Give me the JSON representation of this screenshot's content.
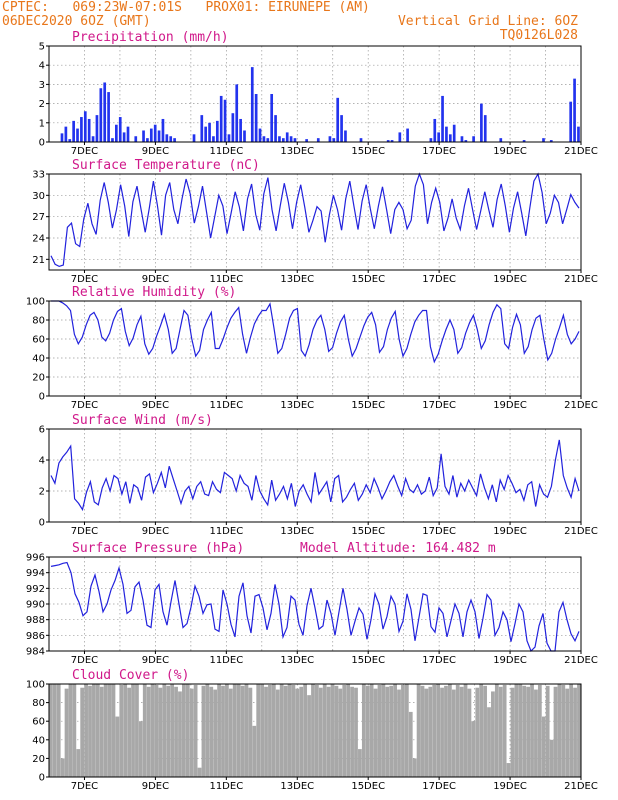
{
  "header": {
    "line1_left": "CPTEC:   069:23W-07:01S   PROX01: EIRUNEPE (AM)",
    "line2_left": "06DEC2020 6OZ (GMT)",
    "line2_right": "Vertical Grid Line: 6OZ",
    "line3_right": "TQ0126L028"
  },
  "colors": {
    "series": "#2222dd",
    "bars": "#2233ee",
    "cloud": "#a8a8a8",
    "header": "#e8761a",
    "title": "#d0188a"
  },
  "x_axis": {
    "ticks": [
      "7DEC",
      "9DEC",
      "11DEC",
      "13DEC",
      "15DEC",
      "17DEC",
      "19DEC",
      "21DEC"
    ],
    "start": "06DEC2020 06Z",
    "end": "21DEC2020 06Z",
    "step_hours": 6
  },
  "chart_data": [
    {
      "type": "bar",
      "title": "Precipitation (mm/h)",
      "ylim": [
        0,
        5
      ],
      "yticks": [
        "0",
        "1",
        "2",
        "3",
        "4",
        "5"
      ],
      "series": [
        {
          "values": [
            0,
            0,
            0,
            0.45,
            0.8,
            0.15,
            1.1,
            0.7,
            1.3,
            1.6,
            1.2,
            0.3,
            1.4,
            2.8,
            3.1,
            2.6,
            0.2,
            0.9,
            1.3,
            0.5,
            0.8,
            0,
            0.3,
            0,
            0.6,
            0.2,
            0.7,
            0.9,
            0.6,
            1.2,
            0.4,
            0.3,
            0.2,
            0,
            0,
            0,
            0,
            0.4,
            0,
            1.4,
            0.8,
            1.0,
            0.3,
            1.1,
            2.4,
            2.2,
            0.4,
            1.5,
            3.0,
            1.2,
            0.6,
            0,
            3.9,
            2.5,
            0.7,
            0.3,
            0.2,
            2.5,
            1.4,
            0.3,
            0.2,
            0.5,
            0.3,
            0.2,
            0,
            0,
            0.15,
            0,
            0,
            0.2,
            0,
            0,
            0.3,
            0.2,
            2.3,
            1.4,
            0.6,
            0,
            0,
            0,
            0.2,
            0,
            0,
            0,
            0,
            0,
            0,
            0.1,
            0.1,
            0,
            0.5,
            0,
            0.7,
            0,
            0,
            0,
            0,
            0,
            0.2,
            1.2,
            0.5,
            2.4,
            0.8,
            0.4,
            0.9,
            0,
            0.3,
            0.1,
            0,
            0.3,
            0,
            2.0,
            1.4,
            0,
            0,
            0,
            0.2,
            0,
            0,
            0,
            0,
            0,
            0.1,
            0,
            0,
            0,
            0,
            0.2,
            0,
            0.1,
            0,
            0,
            0,
            0,
            2.1,
            3.3,
            0.8
          ]
        }
      ]
    },
    {
      "type": "line",
      "title": "Surface Temperature (nC)",
      "ylim": [
        19.5,
        33
      ],
      "yticks": [
        "21",
        "24",
        "27",
        "30",
        "33"
      ],
      "series": [
        {
          "values": [
            21.5,
            20.3,
            20.0,
            20.2,
            25.5,
            26.1,
            23.2,
            22.8,
            26.7,
            28.9,
            26.0,
            24.5,
            29.3,
            31.8,
            29.0,
            25.4,
            28.0,
            31.5,
            28.5,
            24.2,
            29.1,
            31.3,
            28.0,
            24.8,
            28.2,
            32.0,
            28.6,
            24.4,
            30.0,
            31.8,
            28.0,
            26.0,
            29.5,
            32.3,
            30.2,
            26.1,
            28.4,
            31.3,
            27.6,
            24.0,
            27.0,
            30.0,
            28.5,
            24.6,
            27.5,
            30.5,
            28.4,
            25.0,
            29.5,
            31.6,
            27.3,
            25.1,
            30.2,
            32.5,
            28.0,
            25.0,
            28.5,
            31.7,
            29.0,
            25.3,
            29.0,
            31.5,
            28.3,
            24.8,
            26.5,
            28.4,
            27.8,
            23.4,
            27.2,
            30.0,
            28.0,
            25.1,
            29.5,
            32.0,
            28.5,
            25.2,
            29.2,
            31.5,
            28.2,
            25.3,
            28.5,
            31.2,
            28.0,
            24.6,
            28.0,
            29.0,
            28.0,
            25.3,
            26.5,
            31.3,
            33.0,
            31.5,
            26.0,
            29.0,
            31.0,
            29.0,
            25.0,
            26.8,
            29.5,
            26.8,
            25.2,
            28.5,
            31.0,
            28.0,
            25.2,
            27.8,
            30.5,
            27.9,
            25.5,
            29.4,
            31.6,
            28.5,
            24.8,
            28.2,
            30.5,
            27.5,
            24.3,
            28.2,
            32.0,
            33.0,
            30.4,
            26.0,
            27.5,
            30.0,
            29.0,
            26.0,
            28.0,
            30.1,
            29.0,
            28.2
          ]
        }
      ]
    },
    {
      "type": "line",
      "title": "Relative Humidity (%)",
      "ylim": [
        0,
        100
      ],
      "yticks": [
        "0",
        "20",
        "40",
        "60",
        "80",
        "100"
      ],
      "series": [
        {
          "values": [
            100,
            100,
            100,
            98,
            95,
            90,
            65,
            55,
            62,
            75,
            85,
            88,
            80,
            62,
            58,
            66,
            80,
            89,
            92,
            68,
            53,
            61,
            75,
            84,
            55,
            44,
            50,
            63,
            74,
            86,
            70,
            45,
            50,
            70,
            90,
            85,
            60,
            42,
            48,
            70,
            80,
            88,
            50,
            50,
            60,
            72,
            82,
            88,
            93,
            65,
            45,
            62,
            76,
            84,
            90,
            90,
            97,
            72,
            45,
            50,
            65,
            82,
            90,
            92,
            48,
            42,
            54,
            70,
            80,
            85,
            70,
            47,
            51,
            66,
            78,
            85,
            60,
            42,
            50,
            62,
            74,
            83,
            88,
            75,
            46,
            52,
            70,
            82,
            89,
            60,
            42,
            50,
            65,
            78,
            85,
            90,
            90,
            52,
            36,
            44,
            58,
            70,
            80,
            70,
            45,
            51,
            66,
            77,
            85,
            70,
            50,
            58,
            75,
            88,
            96,
            92,
            55,
            50,
            72,
            86,
            75,
            45,
            52,
            70,
            82,
            85,
            60,
            38,
            45,
            60,
            72,
            85,
            65,
            55,
            60,
            68
          ]
        }
      ]
    },
    {
      "type": "line",
      "title": "Surface Wind (m/s)",
      "ylim": [
        0,
        6
      ],
      "yticks": [
        "0",
        "2",
        "4",
        "6"
      ],
      "series": [
        {
          "values": [
            3.0,
            2.5,
            3.8,
            4.2,
            4.5,
            4.9,
            1.5,
            1.2,
            0.8,
            1.9,
            2.6,
            1.3,
            1.1,
            2.2,
            2.8,
            2.0,
            3.0,
            2.8,
            1.8,
            2.6,
            1.2,
            2.4,
            2.2,
            1.4,
            2.9,
            3.1,
            1.9,
            2.5,
            3.2,
            2.2,
            3.6,
            2.8,
            2.0,
            1.2,
            2.0,
            2.3,
            1.5,
            2.3,
            2.6,
            1.8,
            1.7,
            2.6,
            2.1,
            1.9,
            3.2,
            3.0,
            2.8,
            2.0,
            3.0,
            2.5,
            2.3,
            1.4,
            3.0,
            2.0,
            1.5,
            1.1,
            2.7,
            1.4,
            1.8,
            2.3,
            1.5,
            2.5,
            1.0,
            2.0,
            2.4,
            1.8,
            1.3,
            3.2,
            1.8,
            2.2,
            2.6,
            1.3,
            2.8,
            3.0,
            1.3,
            1.6,
            2.1,
            2.5,
            1.4,
            1.8,
            2.4,
            1.9,
            2.8,
            2.2,
            1.5,
            2.0,
            2.6,
            3.0,
            2.3,
            1.7,
            2.8,
            2.1,
            1.9,
            2.4,
            1.8,
            2.0,
            2.9,
            1.7,
            2.2,
            4.4,
            2.3,
            1.8,
            3.0,
            1.6,
            2.5,
            2.0,
            2.7,
            2.2,
            1.7,
            3.1,
            2.2,
            1.5,
            2.4,
            1.3,
            2.7,
            2.1,
            3.0,
            2.5,
            1.9,
            2.1,
            1.4,
            2.4,
            2.6,
            1.0,
            2.4,
            1.8,
            1.6,
            2.3,
            4.0,
            5.3,
            3.0,
            2.2,
            1.6,
            2.8,
            2.0
          ]
        }
      ]
    },
    {
      "type": "line",
      "title": "Surface Pressure (hPa)",
      "annotation": "Model Altitude: 164.482 m",
      "ylim": [
        984,
        996
      ],
      "yticks": [
        "984",
        "986",
        "988",
        "990",
        "992",
        "994",
        "996"
      ],
      "series": [
        {
          "values": [
            994.8,
            994.9,
            995.0,
            995.2,
            995.3,
            994.0,
            991.3,
            990.2,
            988.5,
            989.0,
            992.3,
            993.7,
            991.6,
            989.0,
            990.0,
            991.8,
            993.0,
            994.6,
            992.5,
            988.8,
            989.2,
            992.2,
            992.8,
            990.5,
            987.3,
            987.0,
            991.8,
            992.5,
            989.0,
            987.3,
            990.3,
            993.0,
            990.0,
            987.0,
            987.5,
            989.6,
            992.3,
            991.0,
            988.8,
            989.9,
            990.0,
            986.8,
            986.5,
            991.8,
            990.0,
            987.4,
            985.8,
            991.0,
            992.7,
            988.5,
            986.3,
            991.0,
            991.2,
            989.5,
            986.7,
            988.8,
            992.5,
            990.0,
            985.8,
            987.0,
            991.0,
            990.5,
            987.4,
            986.0,
            989.8,
            992.0,
            989.5,
            986.8,
            987.2,
            990.5,
            988.8,
            986.0,
            989.0,
            992.0,
            989.3,
            986.0,
            987.8,
            989.5,
            988.7,
            985.5,
            988.0,
            991.3,
            990.0,
            986.8,
            988.4,
            991.0,
            990.0,
            986.5,
            987.8,
            991.3,
            989.3,
            985.3,
            988.3,
            991.3,
            991.1,
            987.1,
            986.4,
            989.5,
            988.8,
            985.8,
            987.9,
            990.0,
            988.8,
            985.8,
            989.0,
            990.5,
            989.0,
            985.6,
            988.2,
            991.2,
            990.5,
            986.0,
            987.0,
            989.0,
            988.0,
            985.2,
            987.5,
            990.0,
            989.0,
            985.3,
            983.9,
            984.5,
            987.2,
            988.8,
            985.0,
            983.8,
            984.0,
            989.0,
            990.2,
            988.0,
            986.2,
            985.3,
            986.5
          ]
        }
      ]
    },
    {
      "type": "bar",
      "title": "Cloud Cover (%)",
      "ylim": [
        0,
        100
      ],
      "yticks": [
        "0",
        "20",
        "40",
        "60",
        "80",
        "100"
      ],
      "series": [
        {
          "values": [
            100,
            100,
            100,
            20,
            95,
            100,
            100,
            30,
            96,
            100,
            98,
            100,
            100,
            97,
            100,
            100,
            100,
            65,
            99,
            100,
            96,
            100,
            100,
            60,
            100,
            97,
            100,
            99,
            96,
            100,
            98,
            100,
            97,
            92,
            100,
            100,
            95,
            99,
            10,
            98,
            100,
            97,
            94,
            100,
            98,
            100,
            95,
            100,
            100,
            98,
            100,
            96,
            55,
            100,
            100,
            97,
            99,
            100,
            94,
            100,
            98,
            100,
            99,
            95,
            97,
            100,
            88,
            100,
            99,
            96,
            100,
            97,
            100,
            98,
            95,
            99,
            100,
            97,
            96,
            30,
            100,
            98,
            100,
            95,
            99,
            100,
            97,
            98,
            100,
            94,
            99,
            100,
            70,
            20,
            100,
            98,
            95,
            97,
            99,
            100,
            96,
            98,
            100,
            94,
            99,
            97,
            100,
            95,
            60,
            96,
            100,
            98,
            75,
            92,
            100,
            97,
            99,
            15,
            96,
            100,
            100,
            98,
            97,
            100,
            94,
            99,
            65,
            98,
            40,
            97,
            100,
            99,
            95,
            100,
            96,
            100
          ]
        }
      ]
    }
  ]
}
